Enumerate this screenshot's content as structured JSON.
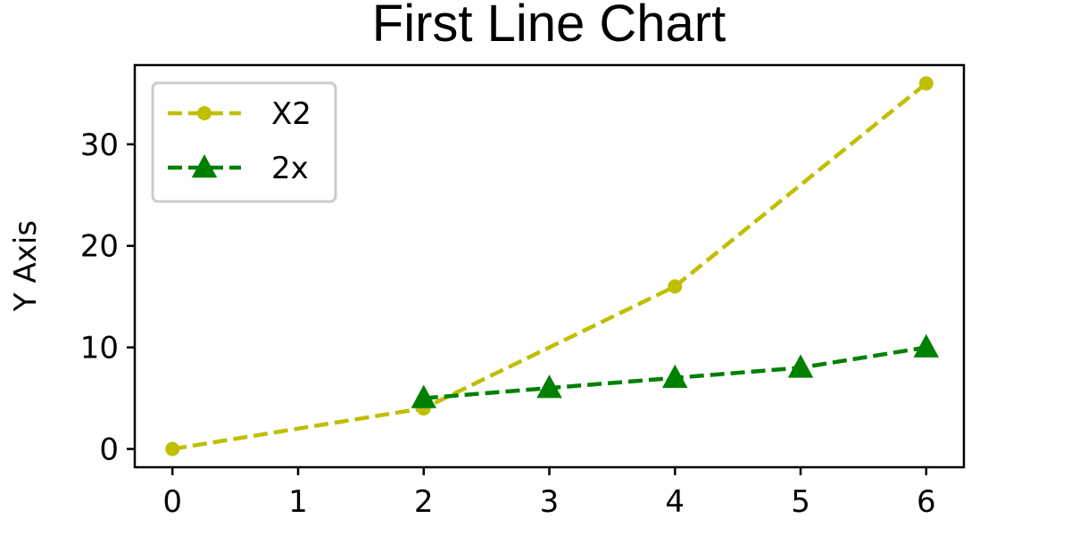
{
  "chart_data": {
    "type": "line",
    "title": "First Line Chart",
    "xlabel": "",
    "ylabel": "Y Axis",
    "xlim": [
      -0.3,
      6.3
    ],
    "ylim": [
      -1.8,
      37.8
    ],
    "x_ticks": [
      "0",
      "1",
      "2",
      "3",
      "4",
      "5",
      "6"
    ],
    "y_ticks": [
      "0",
      "10",
      "20",
      "30"
    ],
    "grid": false,
    "legend_position": "top-left",
    "series": [
      {
        "name": "X2",
        "x": [
          0,
          2,
          4,
          6
        ],
        "y": [
          0,
          4,
          16,
          36
        ],
        "color": "#bfbf00",
        "marker": "circle",
        "linestyle": "dashed"
      },
      {
        "name": "2x",
        "x": [
          2,
          3,
          4,
          5,
          6
        ],
        "y": [
          5,
          6,
          7,
          8,
          10
        ],
        "color": "#008000",
        "marker": "triangle",
        "linestyle": "dashed"
      }
    ]
  }
}
